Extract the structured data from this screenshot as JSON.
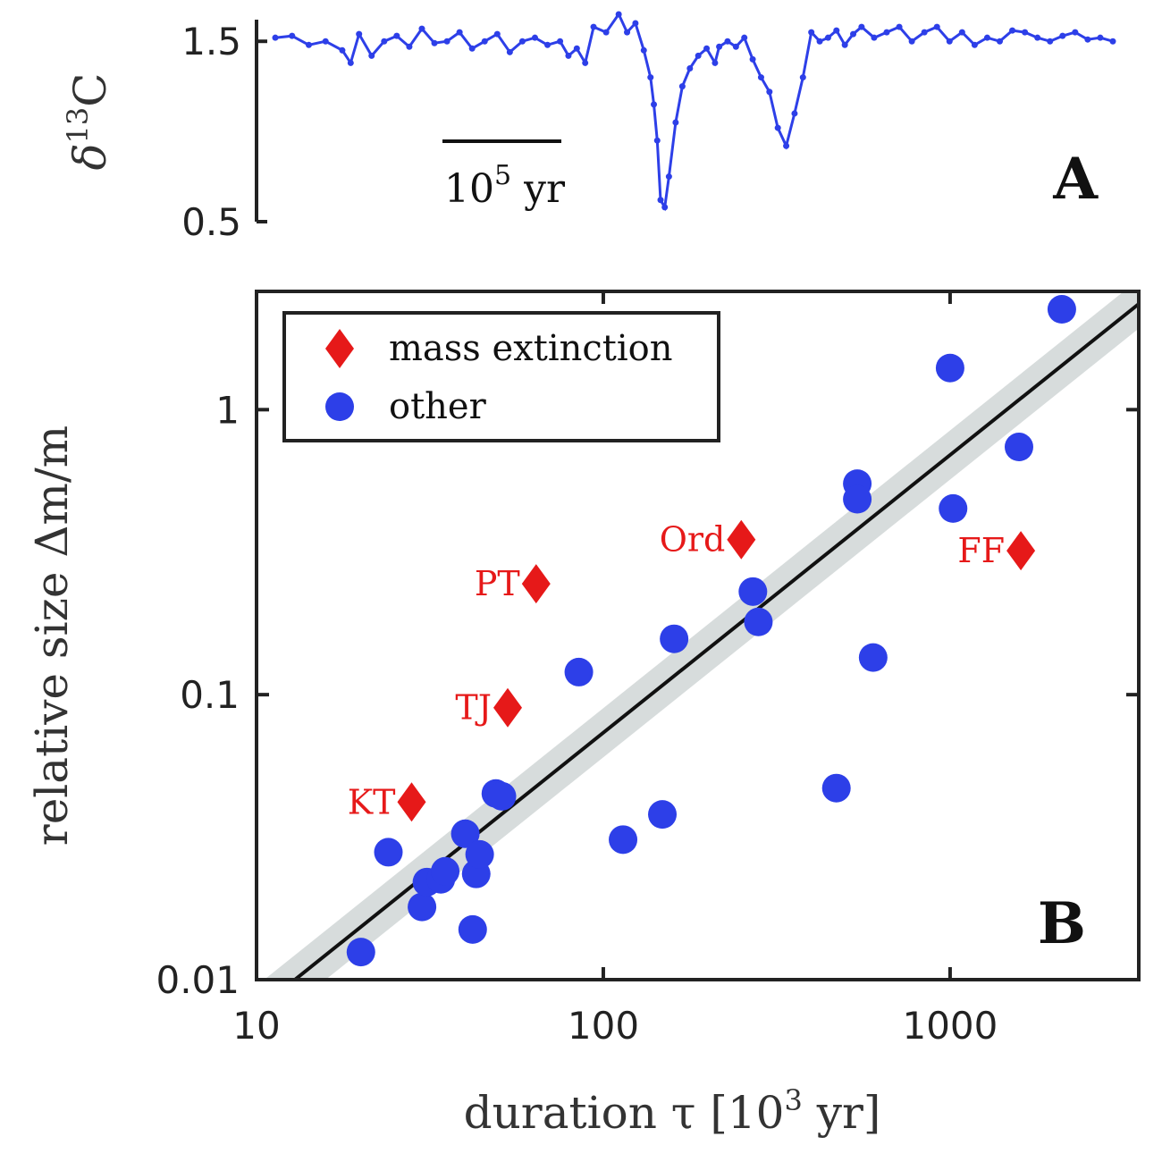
{
  "colors": {
    "point": "#2d3fe8",
    "mass_extinction": "#e61919",
    "band": "#d7dcdc",
    "fit_line": "#111111",
    "axis": "#222222"
  },
  "panel_a": {
    "tag": "A",
    "ylabel_base": "δ",
    "ylabel_sup": "13",
    "ylabel_tail": "C",
    "scale_bar_base": "10",
    "scale_bar_sup": "5",
    "scale_bar_unit": " yr"
  },
  "panel_b": {
    "tag": "B",
    "ylabel": "relative size Δm/m",
    "xlabel_base": "duration τ [10",
    "xlabel_sup": "3",
    "xlabel_tail": " yr]",
    "legend": {
      "mass_extinction": "mass extinction",
      "other": "other"
    }
  },
  "chart_data": [
    {
      "type": "line",
      "panel": "A",
      "title": "",
      "xlabel": "",
      "ylabel": "δ13C",
      "ylim": [
        0.5,
        1.62
      ],
      "yticks": [
        0.5,
        1.5
      ],
      "ytick_labels": [
        "0.5",
        "1.5"
      ],
      "x_range": [
        0,
        1000
      ],
      "x": [
        0,
        20,
        40,
        60,
        80,
        90,
        100,
        115,
        130,
        145,
        160,
        175,
        190,
        205,
        220,
        235,
        250,
        265,
        280,
        295,
        310,
        325,
        340,
        350,
        360,
        370,
        380,
        395,
        410,
        420,
        430,
        440,
        448,
        452,
        456,
        460,
        465,
        470,
        478,
        486,
        495,
        505,
        515,
        525,
        530,
        540,
        550,
        560,
        570,
        580,
        590,
        600,
        610,
        620,
        630,
        640,
        650,
        660,
        670,
        680,
        690,
        700,
        715,
        730,
        745,
        760,
        775,
        790,
        805,
        820,
        835,
        850,
        865,
        880,
        895,
        910,
        925,
        940,
        955,
        970,
        985,
        1000
      ],
      "y": [
        1.52,
        1.53,
        1.48,
        1.5,
        1.45,
        1.38,
        1.54,
        1.42,
        1.5,
        1.53,
        1.47,
        1.57,
        1.49,
        1.5,
        1.55,
        1.46,
        1.5,
        1.54,
        1.44,
        1.5,
        1.52,
        1.48,
        1.5,
        1.42,
        1.46,
        1.38,
        1.58,
        1.55,
        1.65,
        1.55,
        1.6,
        1.45,
        1.3,
        1.15,
        0.95,
        0.62,
        0.58,
        0.75,
        1.05,
        1.25,
        1.35,
        1.42,
        1.46,
        1.38,
        1.47,
        1.5,
        1.47,
        1.52,
        1.4,
        1.3,
        1.22,
        1.02,
        0.92,
        1.1,
        1.3,
        1.55,
        1.5,
        1.52,
        1.56,
        1.48,
        1.54,
        1.58,
        1.52,
        1.55,
        1.58,
        1.5,
        1.55,
        1.58,
        1.5,
        1.55,
        1.48,
        1.52,
        1.5,
        1.56,
        1.55,
        1.52,
        1.5,
        1.53,
        1.55,
        1.51,
        1.52,
        1.5
      ]
    },
    {
      "type": "scatter",
      "panel": "B",
      "title": "",
      "xlabel": "duration τ [10^3 yr]",
      "ylabel": "relative size Δm/m",
      "x_scale": "log",
      "y_scale": "log",
      "xlim": [
        10,
        3500
      ],
      "ylim": [
        0.01,
        2.6
      ],
      "xticks": [
        10,
        100,
        1000
      ],
      "xtick_labels": [
        "10",
        "100",
        "1000"
      ],
      "yticks": [
        0.01,
        0.1,
        1
      ],
      "ytick_labels": [
        "0.01",
        "0.1",
        "1"
      ],
      "legend_position": "top-left",
      "fit_line": {
        "x": [
          10,
          3500
        ],
        "y": [
          0.0078,
          2.35
        ],
        "band_factor": 1.22
      },
      "series": [
        {
          "name": "mass extinction",
          "marker": "diamond",
          "points": [
            {
              "x": 28,
              "y": 0.042,
              "label": "KT",
              "label_side": "left"
            },
            {
              "x": 53,
              "y": 0.09,
              "label": "TJ",
              "label_side": "left"
            },
            {
              "x": 64,
              "y": 0.245,
              "label": "PT",
              "label_side": "left"
            },
            {
              "x": 250,
              "y": 0.35,
              "label": "Ord",
              "label_side": "left"
            },
            {
              "x": 1600,
              "y": 0.32,
              "label": "FF",
              "label_side": "left"
            }
          ]
        },
        {
          "name": "other",
          "marker": "circle",
          "points": [
            {
              "x": 20,
              "y": 0.0125
            },
            {
              "x": 24,
              "y": 0.028
            },
            {
              "x": 30,
              "y": 0.018
            },
            {
              "x": 31,
              "y": 0.022
            },
            {
              "x": 34,
              "y": 0.0225
            },
            {
              "x": 35,
              "y": 0.024
            },
            {
              "x": 40,
              "y": 0.0325
            },
            {
              "x": 42,
              "y": 0.015
            },
            {
              "x": 43,
              "y": 0.0235
            },
            {
              "x": 44,
              "y": 0.0275
            },
            {
              "x": 49,
              "y": 0.045
            },
            {
              "x": 51,
              "y": 0.044
            },
            {
              "x": 85,
              "y": 0.12
            },
            {
              "x": 114,
              "y": 0.031
            },
            {
              "x": 148,
              "y": 0.038
            },
            {
              "x": 160,
              "y": 0.157
            },
            {
              "x": 270,
              "y": 0.23
            },
            {
              "x": 280,
              "y": 0.18
            },
            {
              "x": 470,
              "y": 0.047
            },
            {
              "x": 540,
              "y": 0.55
            },
            {
              "x": 540,
              "y": 0.485
            },
            {
              "x": 600,
              "y": 0.135
            },
            {
              "x": 1000,
              "y": 1.4
            },
            {
              "x": 1020,
              "y": 0.45
            },
            {
              "x": 1580,
              "y": 0.74
            },
            {
              "x": 2100,
              "y": 2.25
            }
          ]
        }
      ]
    }
  ]
}
